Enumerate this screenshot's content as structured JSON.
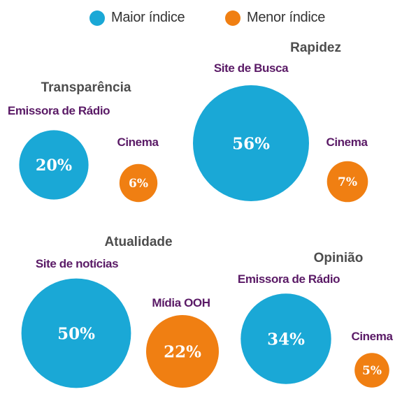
{
  "legend": {
    "max_label": "Maior índice",
    "min_label": "Menor índice",
    "max_color": "#1aa8d6",
    "min_color": "#f07f12"
  },
  "chart_data": {
    "type": "bubble",
    "groups": [
      {
        "title": "Transparência",
        "max": {
          "label": "Emissora de Rádio",
          "value": 20,
          "text": "20%"
        },
        "min": {
          "label": "Cinema",
          "value": 6,
          "text": "6%"
        }
      },
      {
        "title": "Rapidez",
        "max": {
          "label": "Site de Busca",
          "value": 56,
          "text": "56%"
        },
        "min": {
          "label": "Cinema",
          "value": 7,
          "text": "7%"
        }
      },
      {
        "title": "Atualidade",
        "max": {
          "label": "Site de notícias",
          "value": 50,
          "text": "50%"
        },
        "min": {
          "label": "Mídia OOH",
          "value": 22,
          "text": "22%"
        }
      },
      {
        "title": "Opinião",
        "max": {
          "label": "Emissora de Rádio",
          "value": 34,
          "text": "34%"
        },
        "min": {
          "label": "Cinema",
          "value": 5,
          "text": "5%"
        }
      }
    ]
  }
}
